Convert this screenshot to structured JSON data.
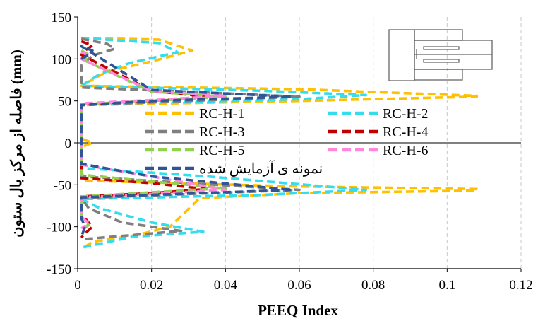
{
  "chart_data": {
    "type": "line",
    "xlabel": "PEEQ Index",
    "ylabel": "فاصله از مرکز بال ستون (mm)",
    "xlim": [
      0,
      0.12
    ],
    "ylim": [
      -150,
      150
    ],
    "x_ticks": [
      0,
      0.02,
      0.04,
      0.06,
      0.08,
      0.1,
      0.12
    ],
    "x_tick_labels": [
      "0",
      "0.02",
      "0.04",
      "0.06",
      "0.08",
      "0.1",
      "0.12"
    ],
    "y_ticks": [
      150,
      100,
      50,
      0,
      -50,
      -100,
      -150
    ],
    "y_tick_labels": [
      "150",
      "100",
      "50",
      "0",
      "-50",
      "-100",
      "-150"
    ],
    "grid": {
      "vertical": true,
      "horizontal": false,
      "style": "dashed"
    },
    "legend_position": "center",
    "inset": "joint-schematic",
    "series": [
      {
        "name": "RC-H-1",
        "color": "#FFC000",
        "points": [
          [
            0.001,
            125
          ],
          [
            0.022,
            123
          ],
          [
            0.031,
            110
          ],
          [
            0.02,
            97
          ],
          [
            0.008,
            85
          ],
          [
            0.001,
            68
          ],
          [
            0.06,
            64
          ],
          [
            0.108,
            56
          ],
          [
            0.108,
            55
          ],
          [
            0.06,
            50
          ],
          [
            0.001,
            45
          ],
          [
            0.001,
            5
          ],
          [
            0.004,
            0
          ],
          [
            0.001,
            -5
          ],
          [
            0.001,
            -45
          ],
          [
            0.06,
            -52
          ],
          [
            0.108,
            -55
          ],
          [
            0.108,
            -57
          ],
          [
            0.06,
            -60
          ],
          [
            0.033,
            -66
          ],
          [
            0.025,
            -100
          ],
          [
            0.016,
            -110
          ],
          [
            0.004,
            -118
          ],
          [
            0.001,
            -127
          ]
        ]
      },
      {
        "name": "RC-H-2",
        "color": "#33DDEE",
        "points": [
          [
            0.001,
            125
          ],
          [
            0.022,
            119
          ],
          [
            0.027,
            108
          ],
          [
            0.014,
            95
          ],
          [
            0.006,
            82
          ],
          [
            0.001,
            68
          ],
          [
            0.05,
            62
          ],
          [
            0.078,
            57
          ],
          [
            0.06,
            52
          ],
          [
            0.001,
            46
          ],
          [
            0.001,
            -30
          ],
          [
            0.035,
            -40
          ],
          [
            0.078,
            -56
          ],
          [
            0.05,
            -62
          ],
          [
            0.001,
            -67
          ],
          [
            0.006,
            -78
          ],
          [
            0.02,
            -95
          ],
          [
            0.034,
            -106
          ],
          [
            0.015,
            -112
          ],
          [
            0.001,
            -125
          ]
        ]
      },
      {
        "name": "RC-H-3",
        "color": "#7F7F7F",
        "points": [
          [
            0.001,
            124
          ],
          [
            0.008,
            118
          ],
          [
            0.01,
            112
          ],
          [
            0.004,
            104
          ],
          [
            0.001,
            92
          ],
          [
            0.001,
            66
          ],
          [
            0.03,
            61
          ],
          [
            0.06,
            55
          ],
          [
            0.03,
            50
          ],
          [
            0.001,
            45
          ],
          [
            0.001,
            -40
          ],
          [
            0.03,
            -48
          ],
          [
            0.06,
            -56
          ],
          [
            0.03,
            -61
          ],
          [
            0.001,
            -66
          ],
          [
            0.003,
            -78
          ],
          [
            0.012,
            -95
          ],
          [
            0.028,
            -105
          ],
          [
            0.012,
            -111
          ],
          [
            0.001,
            -115
          ]
        ]
      },
      {
        "name": "RC-H-4",
        "color": "#C00000",
        "points": [
          [
            0.001,
            121
          ],
          [
            0.004,
            116
          ],
          [
            0.002,
            110
          ],
          [
            0.001,
            105
          ],
          [
            0.02,
            62
          ],
          [
            0.035,
            55
          ],
          [
            0.02,
            50
          ],
          [
            0.001,
            46
          ],
          [
            0.001,
            -42
          ],
          [
            0.02,
            -48
          ],
          [
            0.035,
            -55
          ],
          [
            0.02,
            -60
          ],
          [
            0.001,
            -64
          ],
          [
            0.001,
            -85
          ],
          [
            0.004,
            -100
          ],
          [
            0.002,
            -108
          ],
          [
            0.001,
            -113
          ]
        ]
      },
      {
        "name": "RC-H-5",
        "color": "#92D050",
        "points": [
          [
            0.001,
            110
          ],
          [
            0.003,
            105
          ],
          [
            0.002,
            98
          ],
          [
            0.02,
            61
          ],
          [
            0.04,
            55
          ],
          [
            0.02,
            50
          ],
          [
            0.001,
            46
          ],
          [
            0.001,
            -38
          ],
          [
            0.02,
            -46
          ],
          [
            0.04,
            -54
          ],
          [
            0.02,
            -59
          ],
          [
            0.001,
            -64
          ],
          [
            0.001,
            -90
          ],
          [
            0.003,
            -98
          ],
          [
            0.001,
            -104
          ]
        ]
      },
      {
        "name": "RC-H-6",
        "color": "#FF88DD",
        "points": [
          [
            0.001,
            108
          ],
          [
            0.003,
            104
          ],
          [
            0.001,
            100
          ],
          [
            0.02,
            62
          ],
          [
            0.04,
            56
          ],
          [
            0.02,
            51
          ],
          [
            0.001,
            47
          ],
          [
            0.001,
            -26
          ],
          [
            0.02,
            -40
          ],
          [
            0.04,
            -56
          ],
          [
            0.02,
            -61
          ],
          [
            0.001,
            -65
          ],
          [
            0.001,
            -88
          ],
          [
            0.003,
            -96
          ],
          [
            0.001,
            -102
          ]
        ]
      },
      {
        "name": "نمونه ی آزمایش شده",
        "color": "#2F5597",
        "points": [
          [
            0.001,
            100
          ],
          [
            0.003,
            105
          ],
          [
            0.004,
            110
          ],
          [
            0.001,
            115
          ],
          [
            0.02,
            63
          ],
          [
            0.058,
            55
          ],
          [
            0.02,
            50
          ],
          [
            0.001,
            45
          ],
          [
            0.001,
            -25
          ],
          [
            0.02,
            -40
          ],
          [
            0.058,
            -56
          ],
          [
            0.02,
            -62
          ],
          [
            0.001,
            -65
          ],
          [
            0.001,
            -90
          ],
          [
            0.002,
            -100
          ],
          [
            0.001,
            -112
          ]
        ]
      }
    ]
  }
}
